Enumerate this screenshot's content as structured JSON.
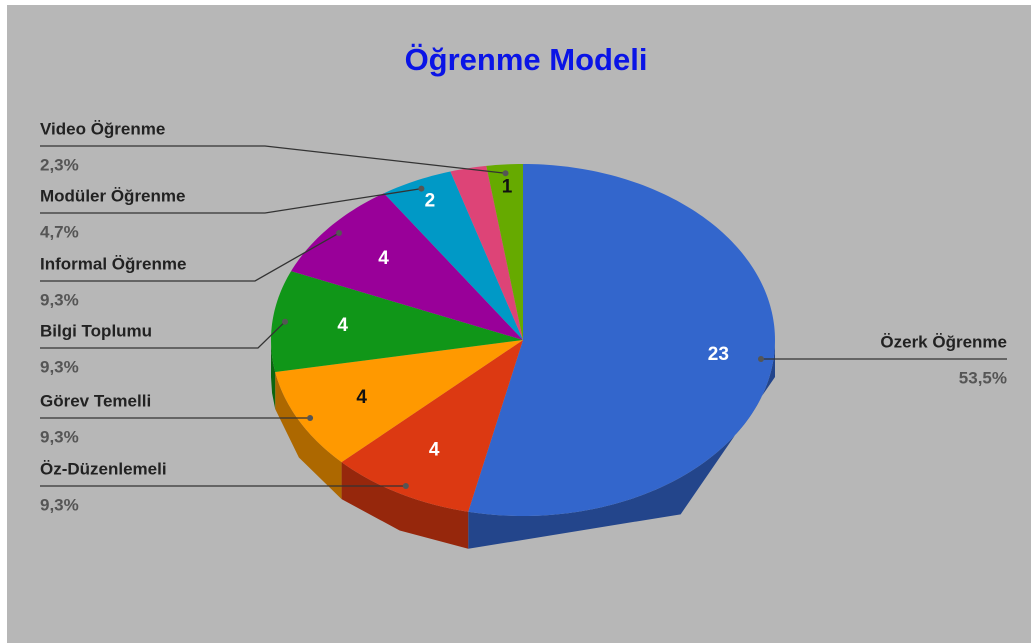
{
  "chart_data": {
    "type": "pie",
    "title": "Öğrenme Modeli",
    "categories": [
      "Özerk Öğrenme",
      "Öz-Düzenlemeli",
      "Görev Temelli",
      "Bilgi Toplumu",
      "Informal Öğrenme",
      "Modüler Öğrenme",
      null,
      "Video Öğrenme"
    ],
    "values": [
      23,
      4,
      4,
      4,
      4,
      2,
      1,
      1
    ],
    "value_labels": [
      "53,5%",
      "9,3%",
      "9,3%",
      "9,3%",
      "9,3%",
      "4,7%",
      null,
      "2,3%"
    ],
    "colors": [
      "#3366cc",
      "#dc3912",
      "#ff9900",
      "#109618",
      "#990099",
      "#0099c6",
      "#dd4477",
      "#66aa00"
    ],
    "legend": "labeled",
    "three_d": true
  }
}
